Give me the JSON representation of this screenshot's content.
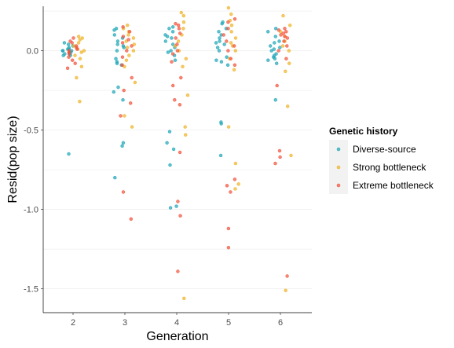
{
  "chart_data": {
    "type": "scatter",
    "title": "",
    "xlabel": "Generation",
    "ylabel": "Resid(pop size)",
    "categories": [
      "2",
      "3",
      "4",
      "5",
      "6"
    ],
    "y_ticks": [
      "-1.5",
      "-1.0",
      "-0.5",
      "0.0"
    ],
    "y_tick_values": [
      -1.5,
      -1.0,
      -0.5,
      0.0
    ],
    "ylim": [
      -1.65,
      0.28
    ],
    "grid": true,
    "legend": {
      "title": "Genetic history",
      "position": "right"
    },
    "series": [
      {
        "name": "Diverse-source",
        "color": "#1FA7B8",
        "points": {
          "2": [
            -0.65,
            0.05,
            0.04,
            0.03,
            0.02,
            0.01,
            0.0,
            0.0,
            -0.01,
            -0.01,
            -0.02,
            -0.02,
            -0.03,
            0.0,
            0.01,
            -0.03
          ],
          "3": [
            -0.8,
            -0.6,
            -0.58,
            -0.31,
            -0.26,
            -0.23,
            -0.09,
            -0.07,
            -0.05,
            0.0,
            0.02,
            0.03,
            0.04,
            0.06,
            0.08,
            0.1,
            0.13,
            0.14,
            -0.08
          ],
          "4": [
            -0.99,
            -0.98,
            -0.72,
            -0.62,
            -0.58,
            -0.51,
            -0.06,
            -0.03,
            -0.01,
            0.0,
            0.02,
            0.04,
            0.06,
            0.08,
            0.1,
            0.12,
            0.14,
            0.15,
            0.09
          ],
          "5": [
            -0.66,
            -0.45,
            -0.46,
            -0.09,
            -0.07,
            -0.06,
            0.0,
            0.02,
            0.04,
            0.05,
            0.06,
            0.08,
            0.1,
            0.12,
            0.14,
            0.17,
            0.18,
            -0.04
          ],
          "6": [
            -0.31,
            -0.08,
            -0.06,
            -0.05,
            -0.04,
            -0.03,
            -0.02,
            0.0,
            0.01,
            0.02,
            0.03,
            0.05,
            0.06,
            0.09,
            0.12,
            0.14
          ]
        }
      },
      {
        "name": "Strong bottleneck",
        "color": "#F0B429",
        "points": {
          "2": [
            -0.32,
            -0.17,
            -0.1,
            -0.05,
            -0.03,
            -0.01,
            0.0,
            0.01,
            0.03,
            0.05,
            0.07,
            0.08,
            0.09
          ],
          "3": [
            -0.48,
            -0.41,
            -0.2,
            -0.1,
            -0.06,
            -0.03,
            0.0,
            0.02,
            0.04,
            0.06,
            0.08,
            0.1,
            0.12,
            0.14,
            0.16
          ],
          "4": [
            -1.56,
            -0.53,
            -0.48,
            -0.28,
            -0.1,
            -0.05,
            0.0,
            0.03,
            0.06,
            0.1,
            0.14,
            0.18,
            0.22,
            0.24
          ],
          "5": [
            -0.87,
            -0.84,
            -0.71,
            -0.48,
            -0.12,
            -0.05,
            0.0,
            0.03,
            0.05,
            0.08,
            0.12,
            0.16,
            0.19,
            0.23,
            0.27
          ],
          "6": [
            -1.51,
            -0.66,
            -0.35,
            -0.13,
            -0.08,
            0.0,
            0.03,
            0.06,
            0.09,
            0.12,
            0.16,
            0.22
          ]
        }
      },
      {
        "name": "Extreme bottleneck",
        "color": "#F2543D",
        "points": {
          "2": [
            -0.11,
            -0.08,
            -0.06,
            -0.04,
            -0.02,
            -0.01,
            0.0,
            0.01,
            0.02,
            0.03,
            0.05,
            0.06,
            0.08
          ],
          "3": [
            -1.06,
            -0.89,
            -0.41,
            -0.33,
            -0.25,
            -0.17,
            -0.09,
            -0.04,
            0.0,
            0.03,
            0.05,
            0.07,
            0.09,
            0.12,
            0.15
          ],
          "4": [
            -1.39,
            -1.04,
            -0.95,
            -0.64,
            -0.34,
            -0.31,
            -0.22,
            -0.17,
            -0.07,
            -0.02,
            0.0,
            0.04,
            0.08,
            0.11,
            0.14,
            0.16,
            0.17
          ],
          "5": [
            -1.24,
            -1.12,
            -0.89,
            -0.85,
            -0.81,
            -0.09,
            -0.05,
            0.0,
            0.03,
            0.06,
            0.1,
            0.14,
            0.18,
            0.2
          ],
          "6": [
            -1.42,
            -0.71,
            -0.67,
            -0.63,
            -0.22,
            -0.05,
            0.0,
            0.03,
            0.06,
            0.08,
            0.09,
            0.1,
            0.11,
            0.12,
            0.13,
            0.14
          ]
        }
      }
    ]
  }
}
